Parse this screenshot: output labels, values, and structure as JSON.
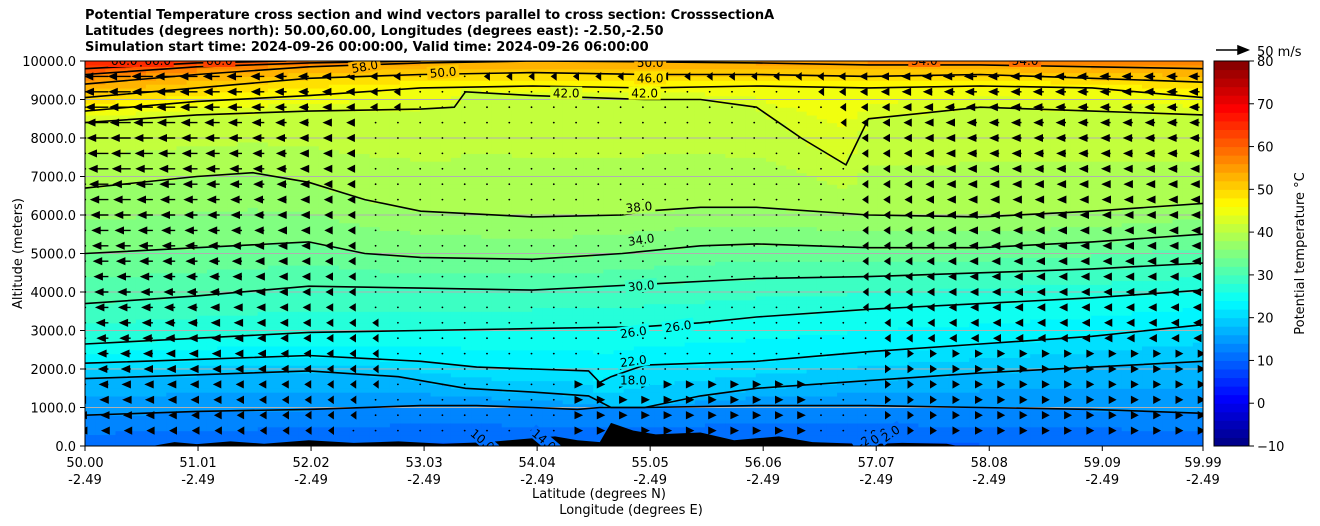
{
  "chart_data": {
    "type": "heatmap",
    "title": [
      "Potential Temperature cross section and wind vectors parallel to cross section: CrosssectionA",
      "Latitudes (degrees north): 50.00,60.00, Longitudes (degrees east): -2.50,-2.50",
      "Simulation start time: 2024-09-26 00:00:00, Valid time: 2024-09-26 06:00:00"
    ],
    "xlabel": "Latitude (degrees N)",
    "xlabel2": "Longitude (degrees E)",
    "ylabel": "Altitude (meters)",
    "x_ticks": [
      "50.00",
      "51.01",
      "52.02",
      "53.03",
      "54.04",
      "55.05",
      "56.06",
      "57.07",
      "58.08",
      "59.09",
      "59.99"
    ],
    "x_ticks_lon": [
      "-2.49",
      "-2.49",
      "-2.49",
      "-2.49",
      "-2.49",
      "-2.49",
      "-2.49",
      "-2.49",
      "-2.49",
      "-2.49",
      "-2.49"
    ],
    "xlim": [
      50.0,
      59.99
    ],
    "y_ticks": [
      "0.0",
      "1000.0",
      "2000.0",
      "3000.0",
      "4000.0",
      "5000.0",
      "6000.0",
      "7000.0",
      "8000.0",
      "9000.0",
      "10000.0"
    ],
    "ylim": [
      0,
      10000
    ],
    "grid": "horizontal",
    "colorbar": {
      "label": "Potential temperature $^\\circ$C",
      "ticks": [
        "−10",
        "0",
        "10",
        "20",
        "30",
        "40",
        "50",
        "60",
        "70",
        "80"
      ],
      "range": [
        -10,
        80
      ],
      "colormap": "jet"
    },
    "quiver_key": "50 m/s",
    "contour_labels": [
      "10.0",
      "14.0",
      "18.0",
      "22.0",
      "26.0",
      "26.0",
      "30.0",
      "34.0",
      "38.0",
      "42.0",
      "42.0",
      "46.0",
      "50.0",
      "50.0",
      "54.0",
      "54.0",
      "58.0",
      "66.0",
      "66.0",
      "66.0",
      "-2.0",
      "0.0",
      "2.0"
    ],
    "contours": [
      {
        "level": 14,
        "points": [
          [
            50.0,
            800
          ],
          [
            51.0,
            900
          ],
          [
            52.0,
            950
          ],
          [
            53.0,
            1050
          ],
          [
            53.5,
            1050
          ],
          [
            54.0,
            1000
          ],
          [
            54.4,
            950
          ],
          [
            54.6,
            1000
          ],
          [
            55.0,
            1000
          ],
          [
            56.0,
            1050
          ],
          [
            57.0,
            1050
          ],
          [
            58.0,
            1000
          ],
          [
            59.0,
            950
          ],
          [
            59.99,
            850
          ]
        ]
      },
      {
        "level": 18,
        "points": [
          [
            50.0,
            1750
          ],
          [
            51.0,
            1850
          ],
          [
            52.0,
            1950
          ],
          [
            52.8,
            1800
          ],
          [
            53.4,
            1500
          ],
          [
            54.0,
            1400
          ],
          [
            54.5,
            1300
          ],
          [
            54.7,
            1000
          ],
          [
            55.0,
            1000
          ],
          [
            55.5,
            1300
          ],
          [
            56.0,
            1500
          ],
          [
            57.0,
            1700
          ],
          [
            58.0,
            1900
          ],
          [
            59.0,
            2050
          ],
          [
            59.99,
            2200
          ]
        ]
      },
      {
        "level": 22,
        "points": [
          [
            50.0,
            2150
          ],
          [
            51.0,
            2250
          ],
          [
            52.0,
            2350
          ],
          [
            53.0,
            2200
          ],
          [
            53.5,
            2050
          ],
          [
            54.0,
            2000
          ],
          [
            54.5,
            1950
          ],
          [
            54.6,
            1650
          ],
          [
            54.7,
            1800
          ],
          [
            55.0,
            2100
          ],
          [
            56.0,
            2200
          ],
          [
            57.0,
            2450
          ],
          [
            58.0,
            2650
          ],
          [
            59.0,
            2850
          ],
          [
            59.99,
            3150
          ]
        ]
      },
      {
        "level": 26,
        "points": [
          [
            50.0,
            2650
          ],
          [
            51.0,
            2800
          ],
          [
            52.0,
            2950
          ],
          [
            53.0,
            3000
          ],
          [
            54.0,
            3050
          ],
          [
            55.0,
            3100
          ],
          [
            55.5,
            3200
          ],
          [
            56.0,
            3350
          ],
          [
            57.0,
            3550
          ],
          [
            58.0,
            3700
          ],
          [
            59.0,
            3850
          ],
          [
            59.99,
            4050
          ]
        ]
      },
      {
        "level": 30,
        "points": [
          [
            50.0,
            3700
          ],
          [
            51.0,
            3900
          ],
          [
            52.0,
            4150
          ],
          [
            53.0,
            4100
          ],
          [
            54.0,
            4050
          ],
          [
            55.0,
            4200
          ],
          [
            56.0,
            4350
          ],
          [
            57.0,
            4400
          ],
          [
            58.0,
            4500
          ],
          [
            59.0,
            4600
          ],
          [
            59.99,
            4750
          ]
        ]
      },
      {
        "level": 34,
        "points": [
          [
            50.0,
            5000
          ],
          [
            51.0,
            5150
          ],
          [
            52.0,
            5300
          ],
          [
            52.5,
            5000
          ],
          [
            53.0,
            4900
          ],
          [
            54.0,
            4850
          ],
          [
            54.8,
            5000
          ],
          [
            55.5,
            5200
          ],
          [
            56.0,
            5250
          ],
          [
            57.0,
            5150
          ],
          [
            58.0,
            5150
          ],
          [
            59.0,
            5300
          ],
          [
            59.99,
            5500
          ]
        ]
      },
      {
        "level": 38,
        "points": [
          [
            50.0,
            6700
          ],
          [
            51.0,
            7000
          ],
          [
            51.5,
            7100
          ],
          [
            52.0,
            6850
          ],
          [
            52.5,
            6400
          ],
          [
            53.0,
            6100
          ],
          [
            54.0,
            5950
          ],
          [
            54.8,
            6000
          ],
          [
            55.0,
            6100
          ],
          [
            55.5,
            6200
          ],
          [
            56.0,
            6200
          ],
          [
            57.0,
            6000
          ],
          [
            58.0,
            5950
          ],
          [
            59.0,
            6100
          ],
          [
            59.99,
            6300
          ]
        ]
      },
      {
        "level": 42,
        "points": [
          [
            50.0,
            8400
          ],
          [
            51.0,
            8600
          ],
          [
            52.0,
            8700
          ],
          [
            53.0,
            8750
          ],
          [
            53.3,
            8800
          ],
          [
            53.4,
            9200
          ],
          [
            54.0,
            9100
          ],
          [
            55.0,
            9000
          ],
          [
            55.5,
            9000
          ],
          [
            56.0,
            8800
          ],
          [
            56.4,
            8000
          ],
          [
            56.8,
            7300
          ],
          [
            57.0,
            8500
          ],
          [
            58.0,
            8800
          ],
          [
            59.0,
            8700
          ],
          [
            59.99,
            8600
          ]
        ]
      },
      {
        "level": 46,
        "points": [
          [
            50.0,
            8700
          ],
          [
            51.0,
            8950
          ],
          [
            52.0,
            9100
          ],
          [
            53.0,
            9300
          ],
          [
            54.0,
            9350
          ],
          [
            55.0,
            9300
          ],
          [
            56.0,
            9350
          ],
          [
            57.0,
            9300
          ],
          [
            58.0,
            9350
          ],
          [
            59.0,
            9300
          ],
          [
            59.99,
            9050
          ]
        ]
      },
      {
        "level": 50,
        "points": [
          [
            50.0,
            9050
          ],
          [
            51.0,
            9300
          ],
          [
            52.0,
            9550
          ],
          [
            53.0,
            9650
          ],
          [
            54.0,
            9700
          ],
          [
            55.0,
            9650
          ],
          [
            56.0,
            9650
          ],
          [
            57.0,
            9600
          ],
          [
            58.0,
            9650
          ],
          [
            59.0,
            9550
          ],
          [
            59.99,
            9450
          ]
        ]
      },
      {
        "level": 54,
        "points": [
          [
            50.0,
            9400
          ],
          [
            51.0,
            9650
          ],
          [
            52.0,
            9850
          ],
          [
            53.0,
            9950
          ],
          [
            54.0,
            10000
          ],
          [
            55.0,
            9980
          ],
          [
            56.0,
            9950
          ],
          [
            57.0,
            9900
          ],
          [
            58.0,
            9900
          ],
          [
            59.0,
            9850
          ],
          [
            59.99,
            9800
          ]
        ]
      },
      {
        "level": 58,
        "points": [
          [
            50.0,
            9650
          ],
          [
            51.0,
            9850
          ],
          [
            52.0,
            9950
          ],
          [
            53.0,
            10000
          ]
        ]
      },
      {
        "level": 62,
        "points": [
          [
            50.0,
            9800
          ],
          [
            51.0,
            9950
          ],
          [
            51.8,
            10000
          ]
        ]
      }
    ],
    "terrain": [
      [
        50.0,
        0
      ],
      [
        50.6,
        0
      ],
      [
        50.8,
        100
      ],
      [
        51.0,
        50
      ],
      [
        51.3,
        120
      ],
      [
        51.6,
        60
      ],
      [
        52.0,
        150
      ],
      [
        52.4,
        80
      ],
      [
        52.8,
        120
      ],
      [
        53.2,
        60
      ],
      [
        53.6,
        100
      ],
      [
        54.0,
        200
      ],
      [
        54.2,
        250
      ],
      [
        54.4,
        150
      ],
      [
        54.6,
        100
      ],
      [
        54.7,
        600
      ],
      [
        54.9,
        400
      ],
      [
        55.1,
        300
      ],
      [
        55.5,
        350
      ],
      [
        55.8,
        150
      ],
      [
        56.0,
        200
      ],
      [
        56.2,
        250
      ],
      [
        56.5,
        100
      ],
      [
        57.0,
        50
      ],
      [
        57.3,
        80
      ],
      [
        57.7,
        60
      ],
      [
        57.8,
        0
      ],
      [
        59.99,
        0
      ]
    ]
  }
}
